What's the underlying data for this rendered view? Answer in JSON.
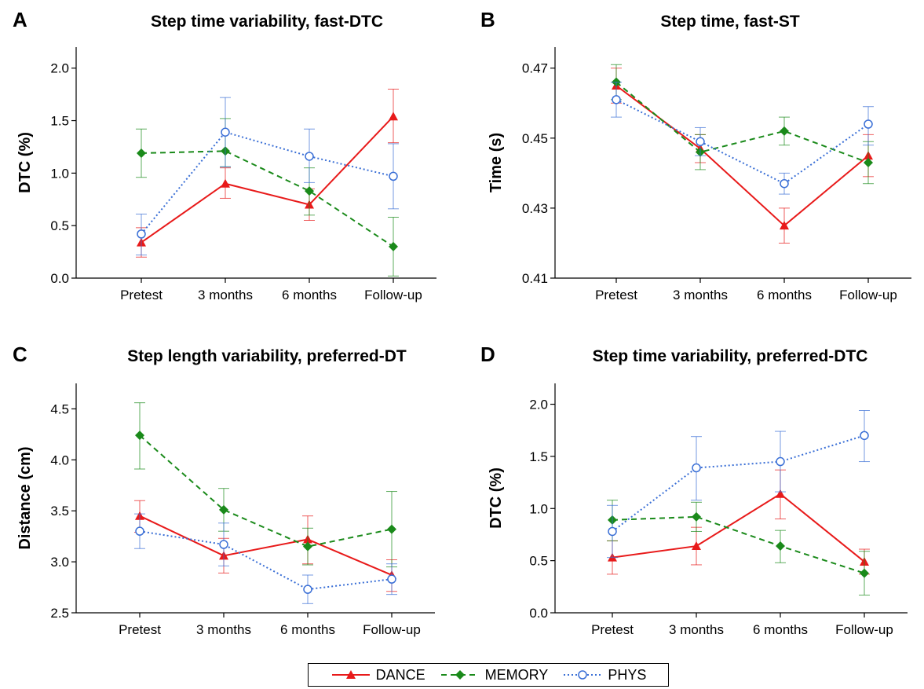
{
  "legend": {
    "items": [
      {
        "label": "DANCE",
        "color": "#e81a1a",
        "dash": "solid",
        "marker": "triangle"
      },
      {
        "label": "MEMORY",
        "color": "#1a8a1a",
        "dash": "dashed",
        "marker": "diamond"
      },
      {
        "label": "PHYS",
        "color": "#3a6fd6",
        "dash": "dotted",
        "marker": "circle-open"
      }
    ]
  },
  "chart_data": [
    {
      "panel": "A",
      "type": "line",
      "title": "Step time variability, fast-DTC",
      "ylabel": "DTC (%)",
      "xlabel": "",
      "categories": [
        "Pretest",
        "3 months",
        "6 months",
        "Follow-up"
      ],
      "ylim": [
        0.0,
        2.2
      ],
      "yticks": [
        0.0,
        0.5,
        1.0,
        1.5,
        2.0
      ],
      "yticklabels": [
        "0.0",
        "0.5",
        "1.0",
        "1.5",
        "2.0"
      ],
      "series": [
        {
          "name": "DANCE",
          "values": [
            0.34,
            0.9,
            0.7,
            1.54
          ],
          "lower": [
            0.2,
            0.76,
            0.55,
            1.29
          ],
          "upper": [
            0.48,
            1.05,
            0.85,
            1.8
          ]
        },
        {
          "name": "MEMORY",
          "values": [
            1.19,
            1.21,
            0.83,
            0.3
          ],
          "lower": [
            0.96,
            1.06,
            0.6,
            0.02
          ],
          "upper": [
            1.42,
            1.52,
            1.05,
            0.58
          ]
        },
        {
          "name": "PHYS",
          "values": [
            0.42,
            1.39,
            1.16,
            0.97
          ],
          "lower": [
            0.22,
            1.06,
            0.91,
            0.66
          ],
          "upper": [
            0.61,
            1.72,
            1.42,
            1.28
          ]
        }
      ]
    },
    {
      "panel": "B",
      "type": "line",
      "title": "Step time, fast-ST",
      "ylabel": "Time (s)",
      "xlabel": "",
      "categories": [
        "Pretest",
        "3 months",
        "6 months",
        "Follow-up"
      ],
      "ylim": [
        0.41,
        0.476
      ],
      "yticks": [
        0.41,
        0.43,
        0.45,
        0.47
      ],
      "yticklabels": [
        "0.41",
        "0.43",
        "0.45",
        "0.47"
      ],
      "series": [
        {
          "name": "DANCE",
          "values": [
            0.465,
            0.447,
            0.425,
            0.445
          ],
          "lower": [
            0.46,
            0.443,
            0.42,
            0.439
          ],
          "upper": [
            0.47,
            0.451,
            0.43,
            0.451
          ]
        },
        {
          "name": "MEMORY",
          "values": [
            0.466,
            0.446,
            0.452,
            0.443
          ],
          "lower": [
            0.461,
            0.441,
            0.448,
            0.437
          ],
          "upper": [
            0.471,
            0.451,
            0.456,
            0.449
          ]
        },
        {
          "name": "PHYS",
          "values": [
            0.461,
            0.449,
            0.437,
            0.454
          ],
          "lower": [
            0.456,
            0.445,
            0.434,
            0.448
          ],
          "upper": [
            0.466,
            0.453,
            0.44,
            0.459
          ]
        }
      ]
    },
    {
      "panel": "C",
      "type": "line",
      "title": "Step length variability, preferred-DT",
      "ylabel": "Distance (cm)",
      "xlabel": "",
      "categories": [
        "Pretest",
        "3 months",
        "6 months",
        "Follow-up"
      ],
      "ylim": [
        2.5,
        4.75
      ],
      "yticks": [
        2.5,
        3.0,
        3.5,
        4.0,
        4.5
      ],
      "yticklabels": [
        "2.5",
        "3.0",
        "3.5",
        "4.0",
        "4.5"
      ],
      "series": [
        {
          "name": "DANCE",
          "values": [
            3.45,
            3.06,
            3.22,
            2.87
          ],
          "lower": [
            3.29,
            2.89,
            2.98,
            2.71
          ],
          "upper": [
            3.6,
            3.23,
            3.45,
            3.02
          ]
        },
        {
          "name": "MEMORY",
          "values": [
            4.24,
            3.51,
            3.15,
            3.32
          ],
          "lower": [
            3.91,
            3.3,
            2.97,
            2.95
          ],
          "upper": [
            4.56,
            3.72,
            3.33,
            3.69
          ]
        },
        {
          "name": "PHYS",
          "values": [
            3.3,
            3.17,
            2.73,
            2.83
          ],
          "lower": [
            3.13,
            2.96,
            2.59,
            2.68
          ],
          "upper": [
            3.47,
            3.38,
            2.87,
            2.98
          ]
        }
      ]
    },
    {
      "panel": "D",
      "type": "line",
      "title": "Step time variability, preferred-DTC",
      "ylabel": "DTC (%)",
      "xlabel": "",
      "categories": [
        "Pretest",
        "3 months",
        "6 months",
        "Follow-up"
      ],
      "ylim": [
        0.0,
        2.2
      ],
      "yticks": [
        0.0,
        0.5,
        1.0,
        1.5,
        2.0
      ],
      "yticklabels": [
        "0.0",
        "0.5",
        "1.0",
        "1.5",
        "2.0"
      ],
      "series": [
        {
          "name": "DANCE",
          "values": [
            0.53,
            0.64,
            1.14,
            0.49
          ],
          "lower": [
            0.37,
            0.46,
            0.9,
            0.37
          ],
          "upper": [
            0.69,
            0.82,
            1.37,
            0.61
          ]
        },
        {
          "name": "MEMORY",
          "values": [
            0.89,
            0.92,
            0.64,
            0.38
          ],
          "lower": [
            0.69,
            0.78,
            0.48,
            0.17
          ],
          "upper": [
            1.08,
            1.06,
            0.79,
            0.59
          ]
        },
        {
          "name": "PHYS",
          "values": [
            0.78,
            1.39,
            1.45,
            1.7
          ],
          "lower": [
            0.53,
            1.08,
            1.16,
            1.45
          ],
          "upper": [
            1.03,
            1.69,
            1.74,
            1.94
          ]
        }
      ]
    }
  ]
}
